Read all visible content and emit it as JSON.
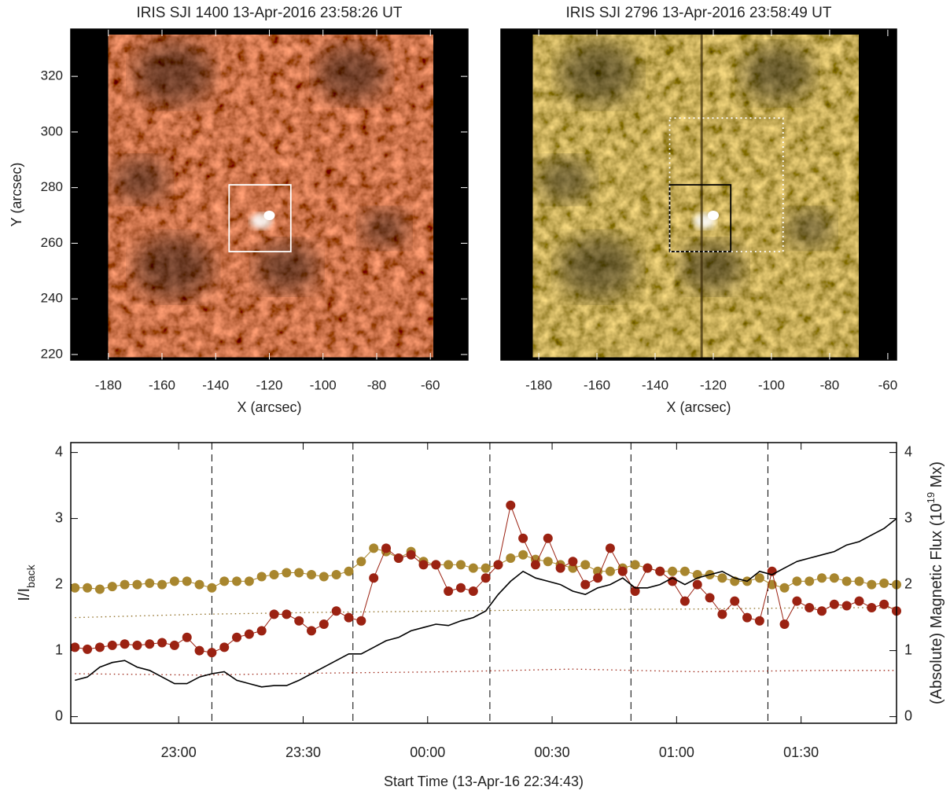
{
  "chart_data": [
    {
      "type": "image",
      "title": "IRIS SJI 1400 13-Apr-2016 23:58:26 UT",
      "xlabel": "X (arcsec)",
      "ylabel": "Y (arcsec)",
      "xlim": [
        -194,
        -46
      ],
      "ylim": [
        218,
        337
      ],
      "xticks": [
        -180,
        -160,
        -140,
        -120,
        -100,
        -80,
        -60
      ],
      "yticks": [
        220,
        240,
        260,
        280,
        300,
        320
      ],
      "image_extent": [
        -180,
        -59,
        219,
        335
      ],
      "palette": "red",
      "boxes": [
        {
          "x": [
            -135,
            -112
          ],
          "y": [
            257,
            281
          ],
          "color": "#ffffff",
          "dash": false
        }
      ]
    },
    {
      "type": "image",
      "title": "IRIS SJI 2796 13-Apr-2016 23:58:49 UT",
      "xlabel": "X (arcsec)",
      "xlim": [
        -193,
        -57
      ],
      "ylim": [
        218,
        337
      ],
      "xticks": [
        -180,
        -160,
        -140,
        -120,
        -100,
        -80,
        -60
      ],
      "image_extent": [
        -182,
        -70,
        219,
        335
      ],
      "palette": "gold",
      "boxes": [
        {
          "x": [
            -135,
            -114
          ],
          "y": [
            257,
            281
          ],
          "color": "#000000",
          "dash": false
        },
        {
          "x": [
            -135,
            -96
          ],
          "y": [
            257,
            305
          ],
          "color": "#ffffff",
          "dash": true
        }
      ]
    },
    {
      "type": "line",
      "xlabel": "Start Time (13-Apr-16 22:34:43)",
      "ylabel": [
        "I/I",
        "back"
      ],
      "y2label": [
        "(Absolute) Magnetic Flux (10",
        "19",
        " Mx)"
      ],
      "xlim": [
        "22:34",
        "01:53"
      ],
      "xticks": [
        "23:00",
        "23:30",
        "00:00",
        "00:30",
        "01:00",
        "01:30"
      ],
      "ylim": [
        -0.1,
        4.15
      ],
      "yticks": [
        0,
        1,
        2,
        3,
        4
      ],
      "y2lim": [
        -0.1,
        4.15
      ],
      "y2ticks": [
        0,
        1,
        2,
        3,
        4
      ],
      "vlines": [
        "23:08",
        "23:42",
        "00:15",
        "00:49",
        "01:22"
      ],
      "x": [
        "22:35",
        "22:38",
        "22:41",
        "22:44",
        "22:47",
        "22:50",
        "22:53",
        "22:56",
        "22:59",
        "23:02",
        "23:05",
        "23:08",
        "23:11",
        "23:14",
        "23:17",
        "23:20",
        "23:23",
        "23:26",
        "23:29",
        "23:32",
        "23:35",
        "23:38",
        "23:41",
        "23:44",
        "23:47",
        "23:50",
        "23:53",
        "23:56",
        "23:59",
        "00:02",
        "00:05",
        "00:08",
        "00:11",
        "00:14",
        "00:17",
        "00:20",
        "00:23",
        "00:26",
        "00:29",
        "00:32",
        "00:35",
        "00:38",
        "00:41",
        "00:44",
        "00:47",
        "00:50",
        "00:53",
        "00:56",
        "00:59",
        "01:02",
        "01:05",
        "01:08",
        "01:11",
        "01:14",
        "01:17",
        "01:20",
        "01:23",
        "01:26",
        "01:29",
        "01:32",
        "01:35",
        "01:38",
        "01:41",
        "01:44",
        "01:47",
        "01:50",
        "01:53"
      ],
      "series": [
        {
          "color": "#8c6a1e",
          "style": "dotted",
          "x": [
            "22:35",
            "23:05",
            "23:35",
            "00:05",
            "00:35",
            "01:05",
            "01:35",
            "01:53"
          ],
          "values": [
            1.5,
            1.55,
            1.58,
            1.6,
            1.62,
            1.63,
            1.65,
            1.65
          ]
        },
        {
          "color": "#9b2212",
          "style": "dotted",
          "x": [
            "22:35",
            "23:05",
            "23:35",
            "00:05",
            "00:35",
            "01:05",
            "01:35",
            "01:53"
          ],
          "values": [
            0.65,
            0.63,
            0.66,
            0.68,
            0.72,
            0.68,
            0.7,
            0.7
          ]
        },
        {
          "color": "#a8862e",
          "style": "dots",
          "values": [
            1.95,
            1.95,
            1.93,
            1.97,
            2.0,
            2.0,
            2.02,
            2.0,
            2.05,
            2.05,
            2.0,
            1.95,
            2.05,
            2.05,
            2.05,
            2.12,
            2.15,
            2.18,
            2.18,
            2.15,
            2.12,
            2.15,
            2.2,
            2.35,
            2.55,
            2.5,
            2.4,
            2.5,
            2.35,
            2.3,
            2.3,
            2.3,
            2.25,
            2.25,
            2.3,
            2.4,
            2.45,
            2.38,
            2.35,
            2.3,
            2.25,
            2.3,
            2.2,
            2.2,
            2.25,
            2.3,
            2.25,
            2.2,
            2.2,
            2.2,
            2.15,
            2.15,
            2.1,
            2.05,
            2.05,
            2.1,
            2.0,
            1.95,
            2.05,
            2.05,
            2.1,
            2.1,
            2.05,
            2.05,
            2.0,
            2.02,
            2.0
          ]
        },
        {
          "color": "#9b2212",
          "style": "dots",
          "values": [
            1.05,
            1.02,
            1.05,
            1.08,
            1.1,
            1.08,
            1.1,
            1.12,
            1.08,
            1.2,
            1.0,
            0.97,
            1.05,
            1.2,
            1.25,
            1.3,
            1.55,
            1.55,
            1.45,
            1.3,
            1.4,
            1.6,
            1.5,
            1.45,
            2.1,
            2.55,
            2.4,
            2.45,
            2.3,
            2.3,
            1.9,
            1.95,
            1.9,
            2.1,
            2.3,
            3.2,
            2.7,
            2.3,
            2.7,
            2.25,
            2.35,
            2.0,
            2.1,
            2.55,
            2.2,
            1.9,
            2.25,
            2.2,
            2.05,
            1.75,
            2.0,
            1.8,
            1.55,
            1.75,
            1.5,
            1.45,
            2.2,
            1.4,
            1.75,
            1.65,
            1.6,
            1.7,
            1.68,
            1.75,
            1.65,
            1.7,
            1.6
          ]
        },
        {
          "color": "#000000",
          "style": "line",
          "axis": "y2",
          "values": [
            0.55,
            0.6,
            0.75,
            0.82,
            0.85,
            0.75,
            0.7,
            0.6,
            0.5,
            0.5,
            0.6,
            0.65,
            0.68,
            0.55,
            0.5,
            0.45,
            0.47,
            0.47,
            0.55,
            0.65,
            0.75,
            0.85,
            0.95,
            0.95,
            1.05,
            1.15,
            1.2,
            1.3,
            1.35,
            1.4,
            1.38,
            1.45,
            1.5,
            1.6,
            1.85,
            2.05,
            2.2,
            2.1,
            2.05,
            2.0,
            1.9,
            1.85,
            1.95,
            2.0,
            2.1,
            1.95,
            1.95,
            2.0,
            2.1,
            2.0,
            2.1,
            2.15,
            2.2,
            2.1,
            2.05,
            2.2,
            2.15,
            2.25,
            2.35,
            2.4,
            2.45,
            2.5,
            2.6,
            2.65,
            2.75,
            2.85,
            3.0
          ]
        }
      ]
    }
  ]
}
